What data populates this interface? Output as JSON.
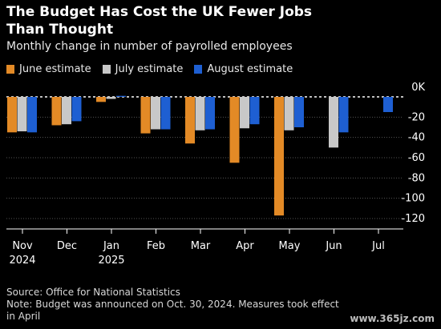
{
  "title": "The Budget Has Cost the UK Fewer Jobs Than Thought",
  "subtitle": "Monthly change in number of payrolled employees",
  "footer": {
    "source": "Source: Office for National Statistics",
    "note": "Note: Budget was announced on Oct. 30, 2024. Measures took effect in April"
  },
  "watermark": "www.365jz.com",
  "colors": {
    "background": "#000000",
    "june": "#e38a26",
    "july": "#c8c8c8",
    "august": "#1e5fd2",
    "grid": "#555555",
    "zero_line": "#ffffff",
    "text": "#ffffff"
  },
  "chart_data": {
    "type": "bar",
    "categories": [
      "Nov\n2024",
      "Dec",
      "Jan\n2025",
      "Feb",
      "Mar",
      "Apr",
      "May",
      "Jun",
      "Jul"
    ],
    "series": [
      {
        "name": "June estimate",
        "color": "#e38a26",
        "values": [
          -35,
          -28,
          -5,
          -36,
          -46,
          -65,
          -117,
          null,
          null
        ]
      },
      {
        "name": "July estimate",
        "color": "#c8c8c8",
        "values": [
          -34,
          -27,
          -2,
          -32,
          -33,
          -31,
          -33,
          -50,
          null
        ]
      },
      {
        "name": "August estimate",
        "color": "#1e5fd2",
        "values": [
          -35,
          -24,
          1,
          -32,
          -32,
          -27,
          -30,
          -35,
          -15
        ]
      }
    ],
    "ylim": [
      -130,
      10
    ],
    "yticks": [
      0,
      -20,
      -40,
      -60,
      -80,
      -100,
      -120
    ],
    "ytick_labels": [
      "0K",
      "-20",
      "-40",
      "-60",
      "-80",
      "-100",
      "-120"
    ],
    "xlabel": "",
    "ylabel": "",
    "legend": "top-left",
    "grid": true
  }
}
